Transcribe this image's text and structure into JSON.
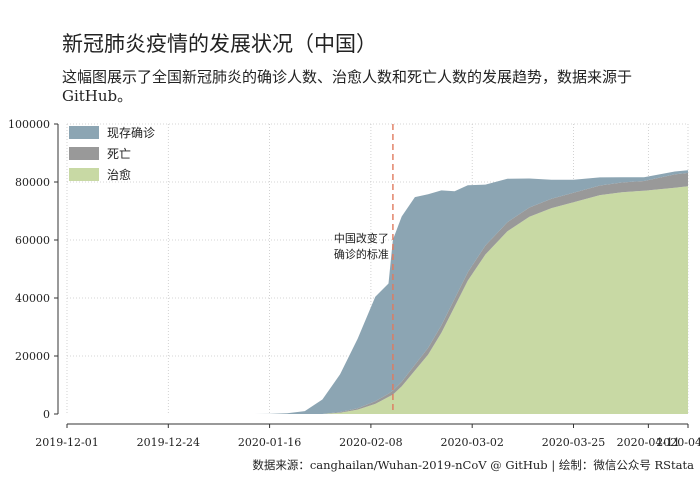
{
  "title": "新冠肺炎疫情的发展状况（中国）",
  "subtitle": "这幅图展示了全国新冠肺炎的确诊人数、治愈人数和死亡人数的发展趋势，数据来源于 GitHub。",
  "caption": "数据来源：canghailan/Wuhan-2019-nCoV @ GitHub | 绘制：微信公众号 RStata",
  "annotation": "中国改变了确诊的标准",
  "annotation_lines": [
    "中国改变了",
    "确诊的标准"
  ],
  "colors": {
    "active": "#8ca5b3",
    "deaths": "#999999",
    "cured": "#c8d9a4",
    "vline": "#e07a5f"
  },
  "chart_data": {
    "type": "area",
    "stacked": true,
    "title": "新冠肺炎疫情的发展状况（中国）",
    "xlabel": "",
    "ylabel": "",
    "xlim": [
      "2019-12-01",
      "2020-04-20"
    ],
    "ylim": [
      0,
      100000
    ],
    "grid": true,
    "legend_position": "top-left",
    "x_ticks": [
      "2019-12-01",
      "2019-12-24",
      "2020-01-16",
      "2020-02-08",
      "2020-03-02",
      "2020-03-25",
      "2020-04-11",
      "2020-04-20"
    ],
    "y_ticks": [
      0,
      20000,
      40000,
      60000,
      80000,
      100000
    ],
    "vline": {
      "x": "2020-02-13",
      "label": "中国改变了确诊的标准"
    },
    "x": [
      "2019-12-01",
      "2020-01-10",
      "2020-01-16",
      "2020-01-20",
      "2020-01-24",
      "2020-01-28",
      "2020-02-01",
      "2020-02-05",
      "2020-02-09",
      "2020-02-12",
      "2020-02-13",
      "2020-02-15",
      "2020-02-18",
      "2020-02-21",
      "2020-02-24",
      "2020-02-27",
      "2020-03-01",
      "2020-03-05",
      "2020-03-10",
      "2020-03-15",
      "2020-03-20",
      "2020-03-25",
      "2020-03-31",
      "2020-04-05",
      "2020-04-10",
      "2020-04-17",
      "2020-04-20"
    ],
    "series": [
      {
        "name": "治愈",
        "values": [
          0,
          0,
          0,
          0,
          0,
          0,
          400,
          1500,
          3500,
          5900,
          6700,
          9500,
          15000,
          20500,
          28000,
          37000,
          46000,
          55000,
          63000,
          68000,
          71000,
          73000,
          75500,
          76500,
          77000,
          78000,
          78500
        ]
      },
      {
        "name": "死亡",
        "values": [
          0,
          0,
          0,
          0,
          0,
          0,
          300,
          500,
          900,
          1100,
          1400,
          1600,
          2000,
          2300,
          2600,
          2800,
          2900,
          3100,
          3150,
          3200,
          3250,
          3300,
          3300,
          3330,
          3340,
          4630,
          4640
        ]
      },
      {
        "name": "现存确诊",
        "values": [
          0,
          0,
          50,
          250,
          1000,
          5000,
          13000,
          24000,
          36000,
          38000,
          52000,
          57000,
          57800,
          53000,
          46500,
          37000,
          30000,
          21000,
          15000,
          10000,
          6500,
          4500,
          2800,
          1800,
          1300,
          1000,
          900
        ]
      }
    ],
    "legend": [
      "现存确诊",
      "死亡",
      "治愈"
    ]
  }
}
